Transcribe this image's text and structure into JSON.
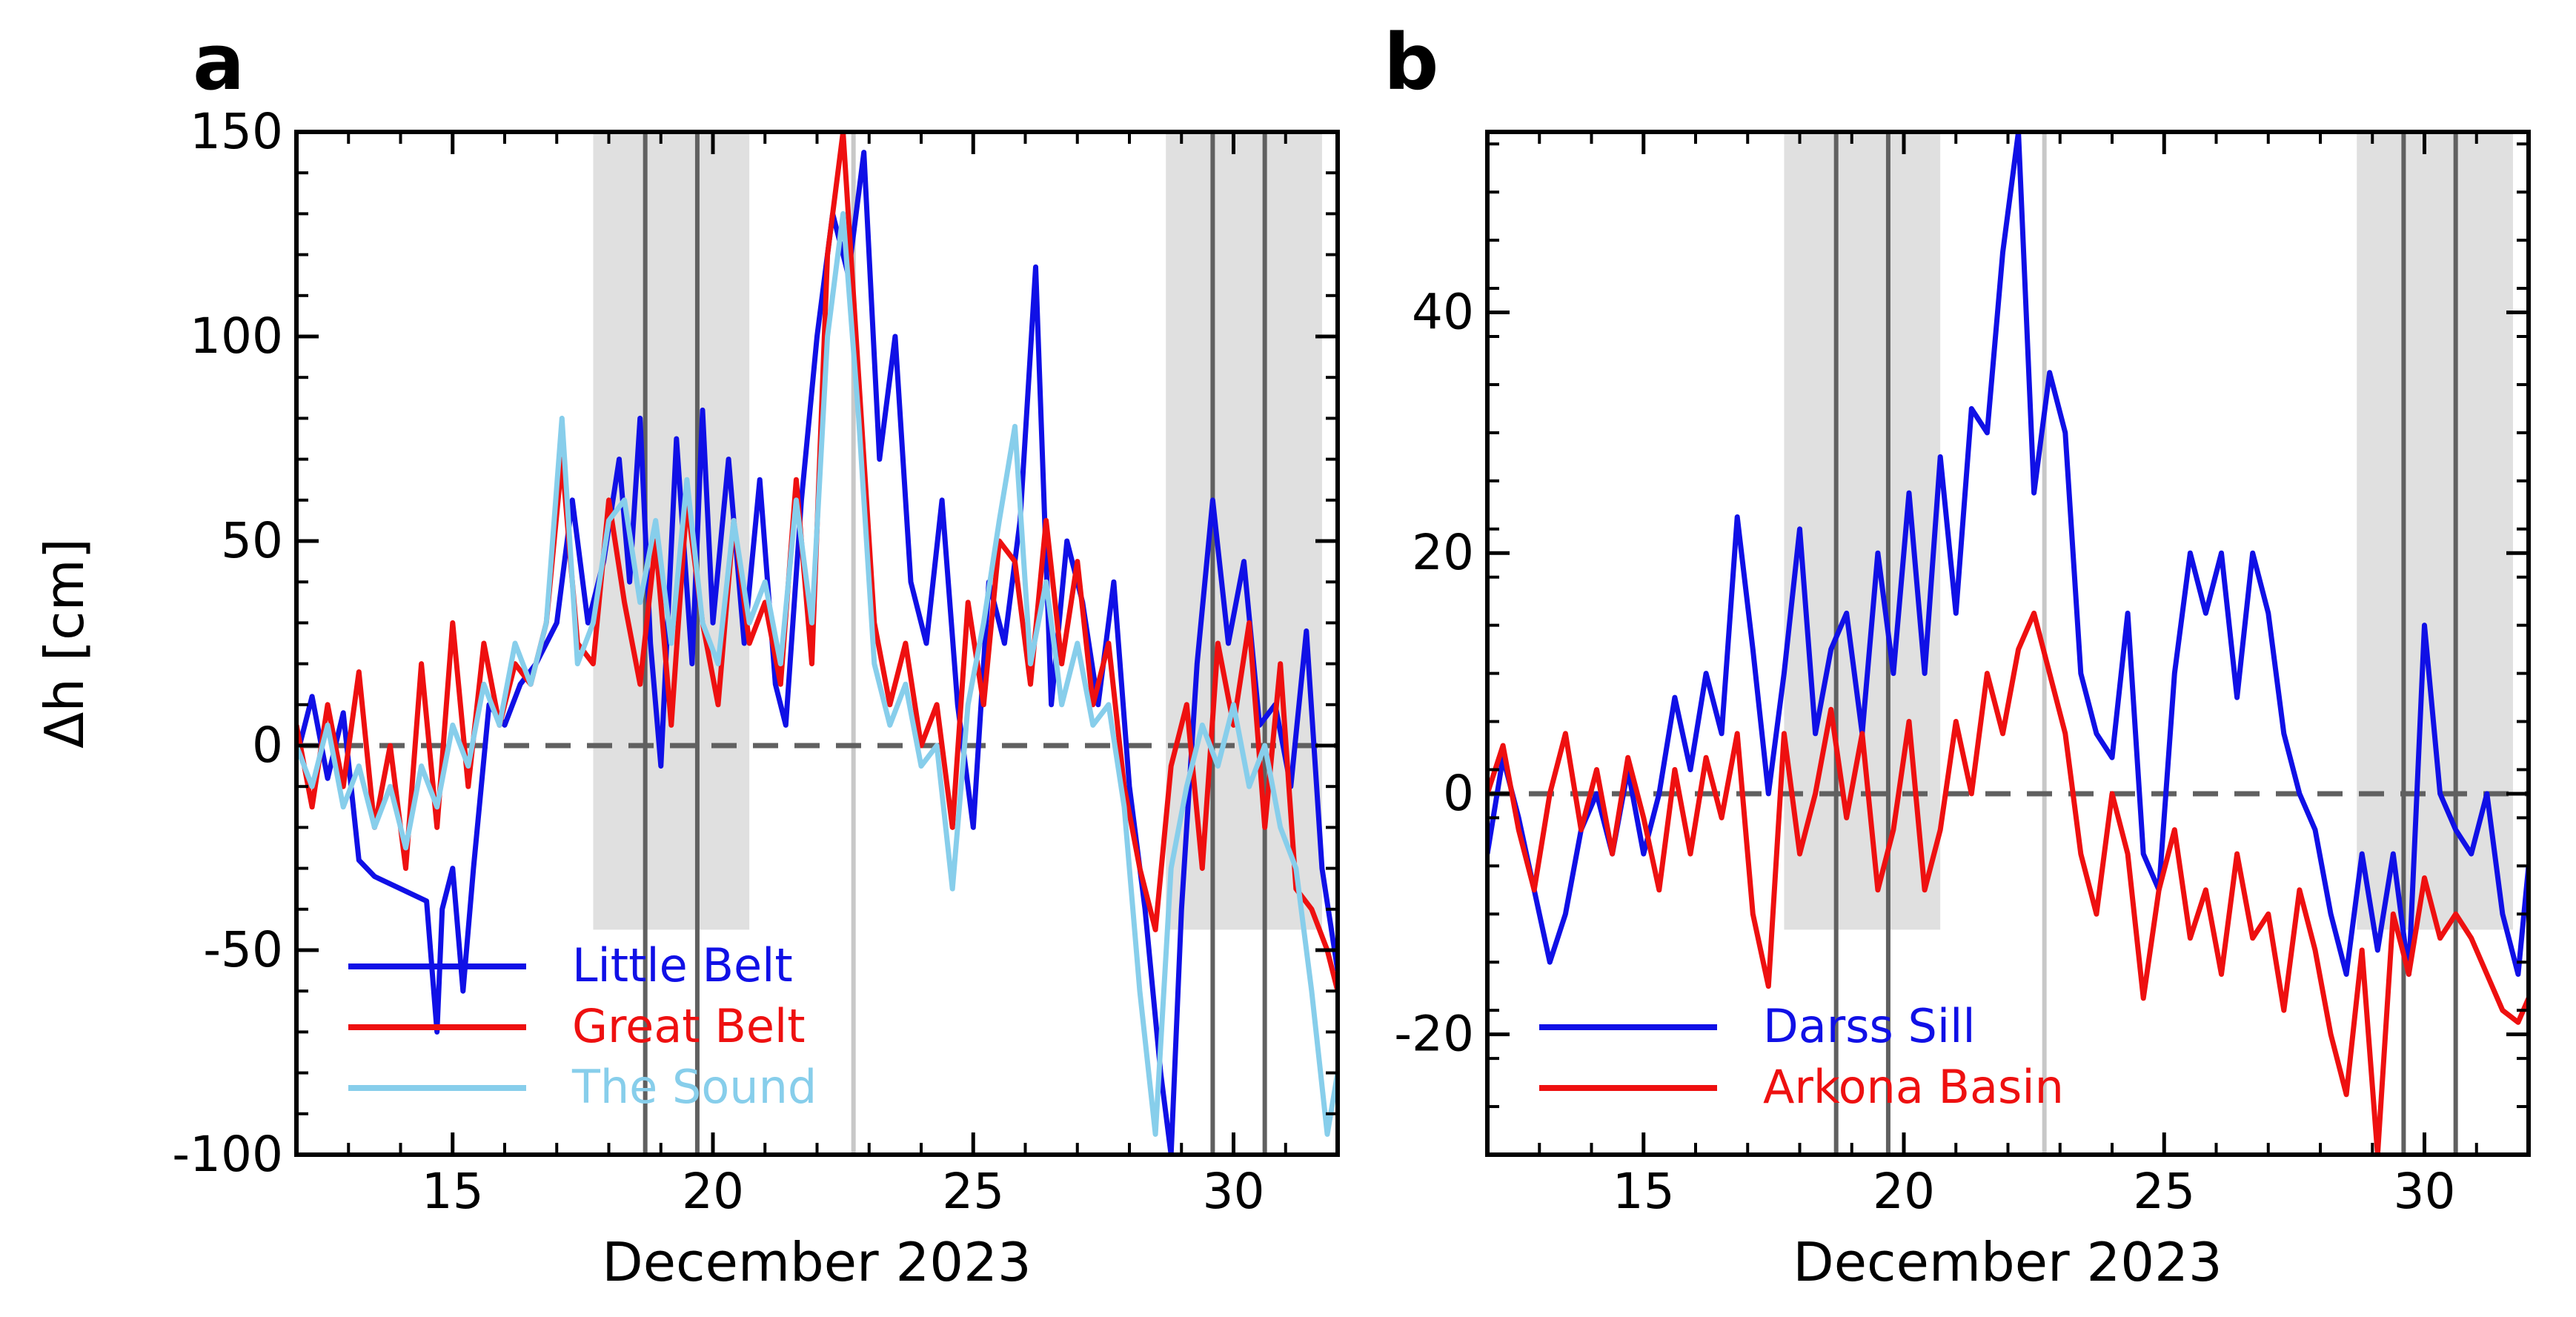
{
  "chart_data": [
    {
      "panel": "a",
      "type": "line",
      "xlabel": "December 2023",
      "ylabel": "Δh [cm]",
      "xlim": [
        12,
        32
      ],
      "ylim": [
        -100,
        150
      ],
      "xticks": [
        15,
        20,
        25,
        30
      ],
      "xtick_labels": [
        "15",
        "20",
        "25",
        "30"
      ],
      "yticks": [
        150,
        100,
        50,
        0,
        -50,
        -100
      ],
      "ytick_labels": [
        "150",
        "100",
        "50",
        "0",
        "-50",
        "-100"
      ],
      "zero_line": "dashed",
      "shaded_periods": [
        [
          17.7,
          20.7
        ],
        [
          28.7,
          31.7
        ]
      ],
      "event_lines": [
        18.7,
        19.7,
        29.6,
        30.6
      ],
      "highlight_line": 22.7,
      "legend_location": "lower-left",
      "series": [
        {
          "name": "Little Belt",
          "color": "#1010e6",
          "x": [
            12,
            12.3,
            12.6,
            12.9,
            13.2,
            13.5,
            14,
            14.5,
            14.7,
            14.8,
            15.0,
            15.2,
            15.4,
            15.7,
            16.0,
            16.3,
            16.6,
            17.0,
            17.3,
            17.6,
            17.9,
            18.2,
            18.4,
            18.6,
            18.8,
            19.0,
            19.3,
            19.6,
            19.8,
            20.0,
            20.3,
            20.6,
            20.9,
            21.2,
            21.4,
            21.7,
            22.0,
            22.3,
            22.6,
            22.9,
            23.2,
            23.5,
            23.8,
            24.1,
            24.4,
            24.7,
            25.0,
            25.3,
            25.6,
            25.9,
            26.2,
            26.5,
            26.8,
            27.1,
            27.4,
            27.7,
            28.0,
            28.3,
            28.6,
            28.8,
            29.0,
            29.3,
            29.6,
            29.9,
            30.2,
            30.5,
            30.8,
            31.1,
            31.4,
            31.7,
            32
          ],
          "values": [
            -3,
            12,
            -8,
            8,
            -28,
            -32,
            -35,
            -38,
            -70,
            -40,
            -30,
            -60,
            -30,
            10,
            5,
            15,
            20,
            30,
            60,
            30,
            45,
            70,
            40,
            80,
            25,
            -5,
            75,
            20,
            82,
            30,
            70,
            25,
            65,
            15,
            5,
            60,
            100,
            130,
            115,
            145,
            70,
            100,
            40,
            25,
            60,
            10,
            -20,
            40,
            25,
            55,
            117,
            10,
            50,
            35,
            10,
            40,
            -10,
            -40,
            -80,
            -100,
            -40,
            20,
            60,
            25,
            45,
            5,
            10,
            -10,
            28,
            -30,
            -55
          ]
        },
        {
          "name": "Great Belt",
          "color": "#ee1010",
          "x": [
            12,
            12.3,
            12.6,
            12.9,
            13.2,
            13.5,
            13.8,
            14.1,
            14.4,
            14.7,
            15.0,
            15.3,
            15.6,
            15.9,
            16.2,
            16.5,
            16.8,
            17.1,
            17.4,
            17.7,
            18.0,
            18.3,
            18.6,
            18.9,
            19.2,
            19.5,
            19.8,
            20.1,
            20.4,
            20.7,
            21.0,
            21.3,
            21.6,
            21.9,
            22.2,
            22.5,
            22.8,
            23.1,
            23.4,
            23.7,
            24.0,
            24.3,
            24.6,
            24.9,
            25.2,
            25.5,
            25.8,
            26.1,
            26.4,
            26.7,
            27.0,
            27.3,
            27.6,
            27.9,
            28.2,
            28.5,
            28.8,
            29.1,
            29.4,
            29.7,
            30.0,
            30.3,
            30.6,
            30.9,
            31.2,
            31.5,
            31.8,
            32
          ],
          "values": [
            5,
            -15,
            10,
            -10,
            18,
            -20,
            0,
            -30,
            20,
            -20,
            30,
            -10,
            25,
            5,
            20,
            15,
            30,
            70,
            25,
            20,
            60,
            35,
            15,
            50,
            5,
            60,
            30,
            10,
            55,
            25,
            35,
            15,
            65,
            20,
            120,
            150,
            90,
            30,
            10,
            25,
            0,
            10,
            -20,
            35,
            10,
            50,
            45,
            15,
            55,
            20,
            45,
            10,
            25,
            -10,
            -30,
            -45,
            -5,
            10,
            -30,
            25,
            5,
            30,
            -20,
            20,
            -35,
            -40,
            -50,
            -60
          ]
        },
        {
          "name": "The Sound",
          "color": "#87ceeb",
          "x": [
            12,
            12.3,
            12.6,
            12.9,
            13.2,
            13.5,
            13.8,
            14.1,
            14.4,
            14.7,
            15.0,
            15.3,
            15.6,
            15.9,
            16.2,
            16.5,
            16.8,
            17.1,
            17.4,
            17.7,
            18.0,
            18.3,
            18.6,
            18.9,
            19.2,
            19.5,
            19.8,
            20.1,
            20.4,
            20.7,
            21.0,
            21.3,
            21.6,
            21.9,
            22.2,
            22.5,
            22.8,
            23.1,
            23.4,
            23.7,
            24.0,
            24.3,
            24.6,
            24.9,
            25.2,
            25.5,
            25.8,
            26.1,
            26.4,
            26.7,
            27.0,
            27.3,
            27.6,
            27.9,
            28.2,
            28.5,
            28.8,
            29.1,
            29.4,
            29.7,
            30.0,
            30.3,
            30.6,
            30.9,
            31.2,
            31.5,
            31.8,
            32
          ],
          "values": [
            0,
            -10,
            5,
            -15,
            -5,
            -20,
            -10,
            -25,
            -5,
            -15,
            5,
            -5,
            15,
            5,
            25,
            15,
            30,
            80,
            20,
            30,
            55,
            60,
            35,
            55,
            25,
            65,
            30,
            20,
            55,
            30,
            40,
            20,
            60,
            30,
            100,
            130,
            80,
            20,
            5,
            15,
            -5,
            0,
            -35,
            10,
            30,
            55,
            78,
            20,
            40,
            10,
            25,
            5,
            10,
            -15,
            -60,
            -95,
            -30,
            -10,
            5,
            -5,
            10,
            -10,
            0,
            -20,
            -30,
            -60,
            -95,
            -80
          ]
        }
      ]
    },
    {
      "panel": "b",
      "type": "line",
      "xlabel": "December 2023",
      "ylabel": "",
      "xlim": [
        12,
        32
      ],
      "ylim": [
        -30,
        55
      ],
      "xticks": [
        15,
        20,
        25,
        30
      ],
      "xtick_labels": [
        "15",
        "20",
        "25",
        "30"
      ],
      "yticks": [
        40,
        20,
        0,
        -20
      ],
      "ytick_labels": [
        "40",
        "20",
        "0",
        "-20"
      ],
      "zero_line": "dashed",
      "shaded_periods": [
        [
          17.7,
          20.7
        ],
        [
          28.7,
          31.7
        ]
      ],
      "event_lines": [
        18.7,
        19.7,
        29.6,
        30.6
      ],
      "highlight_line": 22.7,
      "legend_location": "lower-left",
      "series": [
        {
          "name": "Darss Sill",
          "color": "#1010e6",
          "x": [
            12,
            12.3,
            12.6,
            12.9,
            13.2,
            13.5,
            13.8,
            14.1,
            14.4,
            14.7,
            15.0,
            15.3,
            15.6,
            15.9,
            16.2,
            16.5,
            16.8,
            17.1,
            17.4,
            17.7,
            18.0,
            18.3,
            18.6,
            18.9,
            19.2,
            19.5,
            19.8,
            20.1,
            20.4,
            20.7,
            21.0,
            21.3,
            21.6,
            21.9,
            22.2,
            22.5,
            22.8,
            23.1,
            23.4,
            23.7,
            24.0,
            24.3,
            24.6,
            24.9,
            25.2,
            25.5,
            25.8,
            26.1,
            26.4,
            26.7,
            27.0,
            27.3,
            27.6,
            27.9,
            28.2,
            28.5,
            28.8,
            29.1,
            29.4,
            29.7,
            30.0,
            30.3,
            30.6,
            30.9,
            31.2,
            31.5,
            31.8,
            32
          ],
          "values": [
            -5,
            3,
            -2,
            -8,
            -14,
            -10,
            -3,
            0,
            -5,
            2,
            -5,
            0,
            8,
            2,
            10,
            5,
            23,
            12,
            0,
            10,
            22,
            5,
            12,
            15,
            5,
            20,
            10,
            25,
            10,
            28,
            15,
            32,
            30,
            45,
            55,
            25,
            35,
            30,
            10,
            5,
            3,
            15,
            -5,
            -8,
            10,
            20,
            15,
            20,
            8,
            20,
            15,
            5,
            0,
            -3,
            -10,
            -15,
            -5,
            -13,
            -5,
            -15,
            14,
            0,
            -3,
            -5,
            0,
            -10,
            -15,
            -6
          ]
        },
        {
          "name": "Arkona Basin",
          "color": "#ee1010",
          "x": [
            12,
            12.3,
            12.6,
            12.9,
            13.2,
            13.5,
            13.8,
            14.1,
            14.4,
            14.7,
            15.0,
            15.3,
            15.6,
            15.9,
            16.2,
            16.5,
            16.8,
            17.1,
            17.4,
            17.7,
            18.0,
            18.3,
            18.6,
            18.9,
            19.2,
            19.5,
            19.8,
            20.1,
            20.4,
            20.7,
            21.0,
            21.3,
            21.6,
            21.9,
            22.2,
            22.5,
            22.8,
            23.1,
            23.4,
            23.7,
            24.0,
            24.3,
            24.6,
            24.9,
            25.2,
            25.5,
            25.8,
            26.1,
            26.4,
            26.7,
            27.0,
            27.3,
            27.6,
            27.9,
            28.2,
            28.5,
            28.8,
            29.1,
            29.4,
            29.7,
            30.0,
            30.3,
            30.6,
            30.9,
            31.2,
            31.5,
            31.8,
            32
          ],
          "values": [
            0,
            4,
            -3,
            -8,
            0,
            5,
            -3,
            2,
            -5,
            3,
            -2,
            -8,
            2,
            -5,
            3,
            -2,
            5,
            -10,
            -16,
            5,
            -5,
            0,
            7,
            -2,
            5,
            -8,
            -3,
            6,
            -8,
            -3,
            6,
            0,
            10,
            5,
            12,
            15,
            10,
            5,
            -5,
            -10,
            0,
            -5,
            -17,
            -8,
            -3,
            -12,
            -8,
            -15,
            -5,
            -12,
            -10,
            -18,
            -8,
            -13,
            -20,
            -25,
            -13,
            -30,
            -10,
            -15,
            -7,
            -12,
            -10,
            -12,
            -15,
            -18,
            -19,
            -17
          ]
        }
      ]
    }
  ]
}
